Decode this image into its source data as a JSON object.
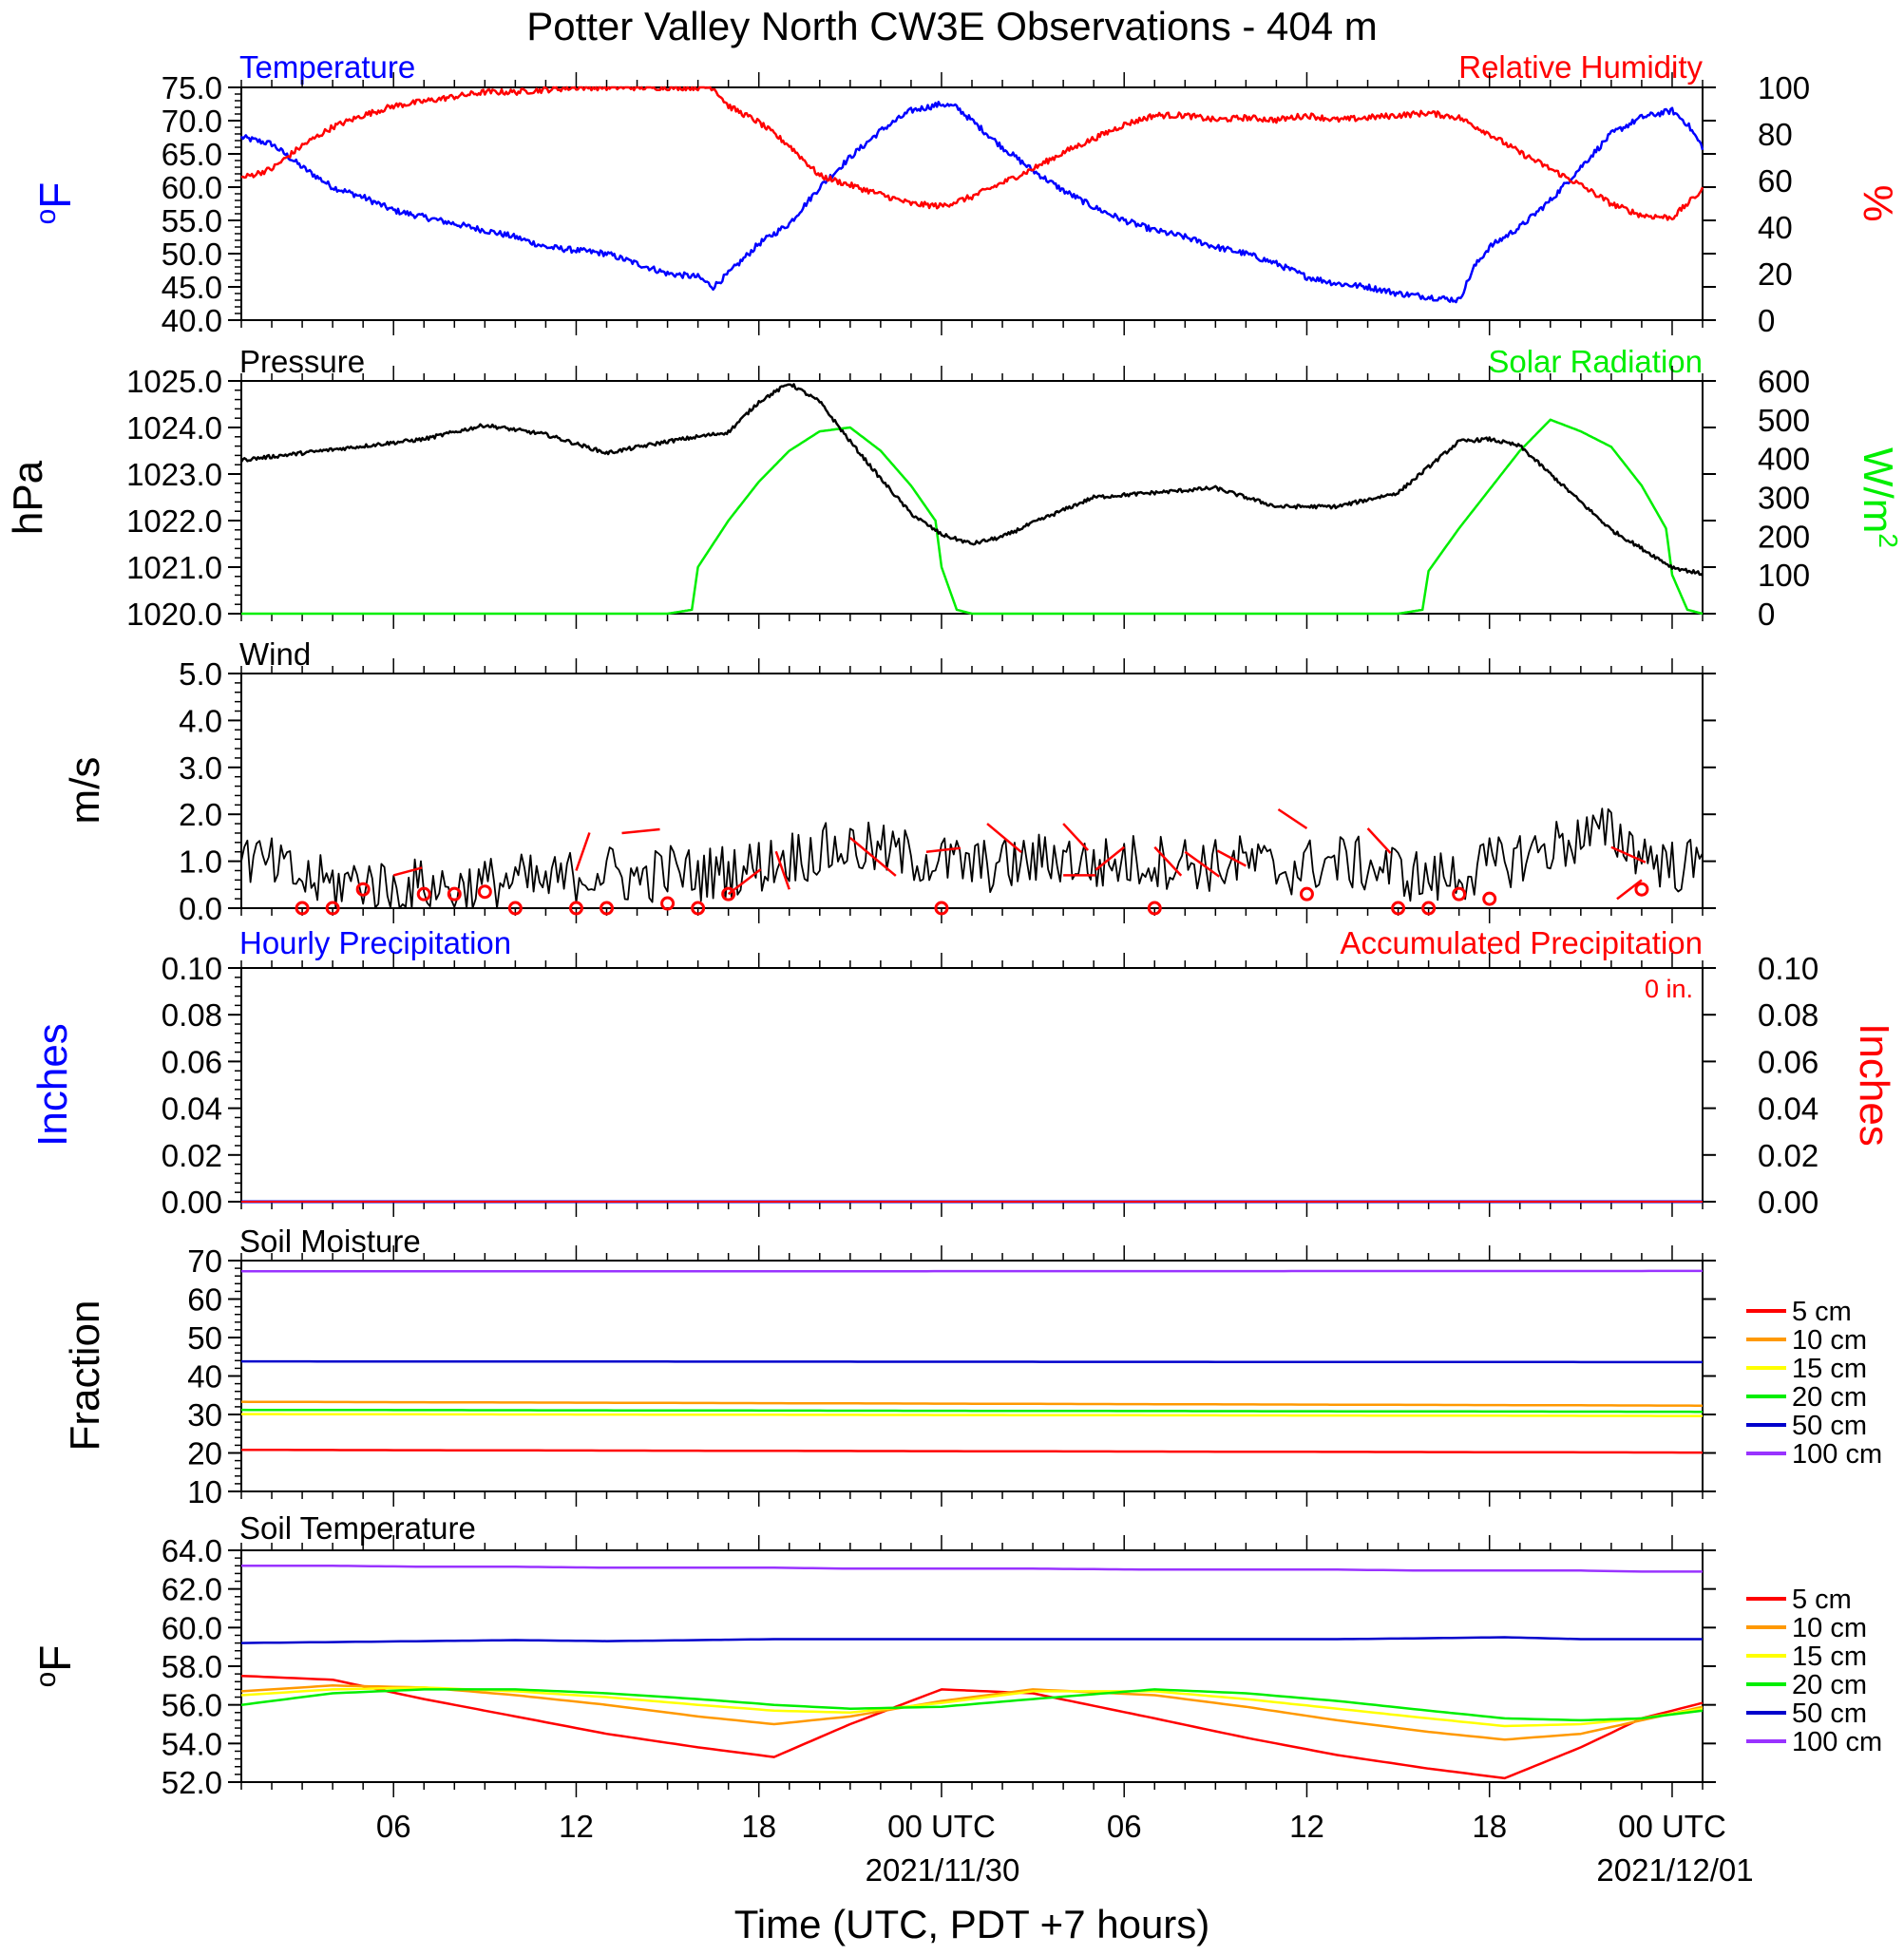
{
  "title": "Potter Valley North CW3E Observations - 404 m",
  "x_axis": {
    "label": "Time (UTC, PDT +7 hours)",
    "tick_labels": [
      "06",
      "12",
      "18",
      "00 UTC",
      "06",
      "12",
      "18",
      "00 UTC"
    ],
    "date_labels": [
      "2021/11/30",
      "2021/12/01"
    ]
  },
  "colors": {
    "blue": "#0000ff",
    "red": "#ff0000",
    "green": "#00ee00",
    "black": "#000000",
    "orange": "#ff9900",
    "yellow": "#ffff00",
    "navy": "#0000cc",
    "purple": "#9933ff"
  },
  "panels": {
    "temp_rh": {
      "left_title": "Temperature",
      "right_title": "Relative Humidity",
      "left_unit": "oF",
      "right_unit": "%",
      "left_ticks": [
        "75.0",
        "70.0",
        "65.0",
        "60.0",
        "55.0",
        "50.0",
        "45.0",
        "40.0"
      ],
      "right_ticks": [
        "100",
        "80",
        "60",
        "40",
        "20",
        "0"
      ]
    },
    "pressure_solar": {
      "left_title": "Pressure",
      "right_title": "Solar Radiation",
      "left_unit": "hPa",
      "right_unit": "W/m2",
      "left_ticks": [
        "1025.0",
        "1024.0",
        "1023.0",
        "1022.0",
        "1021.0",
        "1020.0"
      ],
      "right_ticks": [
        "600",
        "500",
        "400",
        "300",
        "200",
        "100",
        "0"
      ]
    },
    "wind": {
      "left_title": "Wind",
      "left_unit": "m/s",
      "left_ticks": [
        "5.0",
        "4.0",
        "3.0",
        "2.0",
        "1.0",
        "0.0"
      ]
    },
    "precip": {
      "left_title": "Hourly Precipitation",
      "right_title": "Accumulated Precipitation",
      "accum_value": "0 in.",
      "left_unit": "Inches",
      "right_unit": "Inches",
      "left_ticks": [
        "0.10",
        "0.08",
        "0.06",
        "0.04",
        "0.02",
        "0.00"
      ],
      "right_ticks": [
        "0.10",
        "0.08",
        "0.06",
        "0.04",
        "0.02",
        "0.00"
      ]
    },
    "soil_moisture": {
      "left_title": "Soil Moisture",
      "left_unit": "Fraction",
      "left_ticks": [
        "70",
        "60",
        "50",
        "40",
        "30",
        "20",
        "10"
      ],
      "legend": [
        "5 cm",
        "10 cm",
        "15 cm",
        "20 cm",
        "50 cm",
        "100 cm"
      ]
    },
    "soil_temp": {
      "left_title": "Soil Temperature",
      "left_unit": "oF",
      "left_ticks": [
        "64.0",
        "62.0",
        "60.0",
        "58.0",
        "56.0",
        "54.0",
        "52.0"
      ],
      "legend": [
        "5 cm",
        "10 cm",
        "15 cm",
        "20 cm",
        "50 cm",
        "100 cm"
      ]
    }
  },
  "chart_data": [
    {
      "type": "line",
      "title": "Temperature",
      "ylabel": "oF",
      "ylim": [
        40,
        75
      ],
      "x_hours_since_start": [
        0,
        1,
        2,
        3,
        4,
        5,
        6,
        7,
        8,
        9,
        10,
        11,
        12,
        13,
        14,
        15,
        15.5,
        16,
        17,
        18,
        19,
        20,
        21,
        22,
        23,
        23.5,
        24,
        25,
        26,
        27,
        28,
        29,
        30,
        31,
        32,
        33,
        34,
        35,
        36,
        37,
        38,
        39,
        40,
        40.5,
        41,
        42,
        43,
        44,
        45,
        46,
        47,
        47.5,
        48
      ],
      "series": [
        {
          "name": "Temperature",
          "values": [
            67.5,
            66.5,
            63,
            60,
            58.5,
            56.5,
            55.5,
            54.5,
            53.5,
            52.5,
            51,
            50.5,
            50,
            48.5,
            47,
            46.5,
            45,
            47,
            51.5,
            54.5,
            60,
            64.5,
            68.5,
            71.5,
            72.5,
            72,
            70,
            66,
            62.5,
            59.5,
            57,
            55,
            53.5,
            52.5,
            51,
            50,
            48.5,
            46.5,
            45.5,
            45,
            44,
            43.5,
            43,
            48,
            51,
            54,
            58,
            63,
            68,
            70.5,
            71.5,
            69.5,
            66
          ]
        }
      ]
    },
    {
      "type": "line",
      "title": "Relative Humidity",
      "ylabel": "%",
      "ylim": [
        0,
        100
      ],
      "x_hours_since_start": [
        0,
        1,
        2,
        3,
        4,
        5,
        6,
        7,
        8,
        9,
        10,
        11,
        12,
        13,
        14,
        15,
        15.5,
        16,
        17,
        18,
        19,
        20,
        21,
        22,
        23,
        24,
        25,
        26,
        27,
        28,
        29,
        30,
        31,
        32,
        33,
        34,
        35,
        36,
        37,
        38,
        39,
        40,
        41,
        42,
        43,
        44,
        45,
        46,
        47,
        48
      ],
      "series": [
        {
          "name": "Relative Humidity",
          "values": [
            61,
            65,
            75,
            83,
            88,
            92,
            94,
            96,
            98,
            98,
            99,
            100,
            100,
            100,
            100,
            100,
            100,
            92,
            85,
            75,
            62,
            58,
            54,
            50,
            49,
            53,
            59,
            65,
            72,
            78,
            84,
            88,
            88,
            86,
            87,
            86,
            88,
            86,
            87,
            88,
            89,
            87,
            80,
            72,
            65,
            58,
            50,
            45,
            44,
            56
          ]
        }
      ]
    },
    {
      "type": "line",
      "title": "Pressure",
      "ylabel": "hPa",
      "ylim": [
        1020,
        1025
      ],
      "x_hours_since_start": [
        0,
        2,
        4,
        6,
        8,
        10,
        12,
        14,
        16,
        17,
        18,
        19,
        20,
        21,
        22,
        23,
        24,
        25,
        26,
        28,
        30,
        32,
        34,
        36,
        38,
        40,
        41,
        42,
        43,
        44,
        45,
        46,
        47,
        48
      ],
      "series": [
        {
          "name": "Pressure",
          "values": [
            1023.3,
            1023.45,
            1023.6,
            1023.75,
            1024.05,
            1023.85,
            1023.45,
            1023.7,
            1023.9,
            1024.55,
            1024.95,
            1024.55,
            1023.7,
            1022.9,
            1022.15,
            1021.7,
            1021.5,
            1021.65,
            1021.95,
            1022.5,
            1022.6,
            1022.7,
            1022.3,
            1022.3,
            1022.6,
            1023.7,
            1023.75,
            1023.6,
            1023.0,
            1022.4,
            1021.8,
            1021.4,
            1021.0,
            1020.85
          ]
        }
      ]
    },
    {
      "type": "line",
      "title": "Solar Radiation",
      "ylabel": "W/m2",
      "ylim": [
        0,
        600
      ],
      "x_hours_since_start": [
        0,
        14,
        14.8,
        15,
        16,
        17,
        18,
        19,
        20,
        21,
        22,
        22.8,
        23,
        23.5,
        24,
        38,
        38.8,
        39,
        40,
        41,
        42,
        43,
        44,
        45,
        46,
        46.8,
        47,
        47.5,
        48
      ],
      "series": [
        {
          "name": "Solar Radiation",
          "values": [
            0,
            0,
            10,
            120,
            240,
            340,
            420,
            470,
            480,
            420,
            330,
            240,
            120,
            10,
            0,
            0,
            10,
            110,
            220,
            320,
            420,
            500,
            470,
            430,
            330,
            220,
            100,
            10,
            0
          ]
        }
      ]
    },
    {
      "type": "line",
      "title": "Wind",
      "ylabel": "m/s",
      "ylim": [
        0,
        5
      ],
      "x_hours_since_start": [
        0,
        1,
        2,
        3,
        4,
        5,
        6,
        7,
        8,
        9,
        10,
        11,
        12,
        13,
        14,
        15,
        16,
        17,
        18,
        19,
        20,
        21,
        22,
        23,
        24,
        25,
        26,
        27,
        28,
        29,
        30,
        31,
        32,
        33,
        34,
        35,
        36,
        37,
        38,
        39,
        40,
        41,
        42,
        43,
        44,
        45,
        46,
        47,
        48
      ],
      "series": [
        {
          "name": "Wind speed",
          "values": [
            1.1,
            0.9,
            0.6,
            0.5,
            0.6,
            0.4,
            0.5,
            0.4,
            0.5,
            0.6,
            0.5,
            0.7,
            0.8,
            0.6,
            0.8,
            0.7,
            0.8,
            0.9,
            1.1,
            1.2,
            1.3,
            1.2,
            1.1,
            1.0,
            0.9,
            0.9,
            1.0,
            1.1,
            0.9,
            1.0,
            1.0,
            1.0,
            0.9,
            1.0,
            0.8,
            0.9,
            1.0,
            0.9,
            0.8,
            0.6,
            0.7,
            0.9,
            1.1,
            1.3,
            1.5,
            1.6,
            1.2,
            0.9,
            0.9
          ]
        }
      ],
      "observations_marked_calm_or_barb": [
        0.0,
        0.0,
        0.4,
        0.3,
        0.3,
        0.35,
        0.0,
        0.0,
        0.0,
        0.1,
        0.0,
        0.3,
        0.0,
        0.0,
        0.3,
        0.0,
        0.0,
        0.3,
        0.2,
        0.4
      ]
    },
    {
      "type": "line",
      "title": "Hourly Precipitation",
      "ylabel": "Inches",
      "ylim": [
        0,
        0.1
      ],
      "series": [
        {
          "name": "Hourly Precipitation",
          "values": [
            0,
            0
          ]
        },
        {
          "name": "Accumulated Precipitation",
          "values": [
            0,
            0
          ]
        }
      ]
    },
    {
      "type": "line",
      "title": "Soil Moisture",
      "ylabel": "Fraction",
      "ylim": [
        10,
        70
      ],
      "x_hours_since_start": [
        0,
        48
      ],
      "series": [
        {
          "name": "5 cm",
          "values": [
            20.8,
            20.1
          ]
        },
        {
          "name": "10 cm",
          "values": [
            33.3,
            32.3
          ]
        },
        {
          "name": "15 cm",
          "values": [
            30.1,
            29.6
          ]
        },
        {
          "name": "20 cm",
          "values": [
            31.2,
            30.7
          ]
        },
        {
          "name": "50 cm",
          "values": [
            43.8,
            43.6
          ]
        },
        {
          "name": "100 cm",
          "values": [
            67.2,
            67.3
          ]
        }
      ]
    },
    {
      "type": "line",
      "title": "Soil Temperature",
      "ylabel": "oF",
      "ylim": [
        52,
        64
      ],
      "x_hours_since_start": [
        0,
        3,
        6,
        9,
        12,
        15,
        17.5,
        20,
        23,
        26,
        30,
        33,
        36,
        39,
        41.5,
        44,
        46,
        48
      ],
      "series": [
        {
          "name": "5 cm",
          "values": [
            57.5,
            57.3,
            56.3,
            55.4,
            54.5,
            53.8,
            53.3,
            55.0,
            56.8,
            56.6,
            55.3,
            54.3,
            53.4,
            52.7,
            52.2,
            53.8,
            55.3,
            56.1
          ]
        },
        {
          "name": "10 cm",
          "values": [
            56.7,
            57.0,
            56.9,
            56.5,
            56.0,
            55.4,
            55.0,
            55.4,
            56.2,
            56.8,
            56.5,
            55.9,
            55.2,
            54.6,
            54.2,
            54.5,
            55.2,
            55.9
          ]
        },
        {
          "name": "15 cm",
          "values": [
            56.5,
            56.8,
            56.9,
            56.7,
            56.4,
            56.0,
            55.7,
            55.6,
            56.1,
            56.7,
            56.7,
            56.3,
            55.8,
            55.3,
            54.9,
            55.0,
            55.3,
            55.8
          ]
        },
        {
          "name": "20 cm",
          "values": [
            56.0,
            56.6,
            56.8,
            56.8,
            56.6,
            56.3,
            56.0,
            55.8,
            55.9,
            56.3,
            56.8,
            56.6,
            56.2,
            55.7,
            55.3,
            55.2,
            55.3,
            55.7
          ]
        },
        {
          "name": "50 cm",
          "values": [
            59.2,
            59.25,
            59.3,
            59.35,
            59.3,
            59.35,
            59.4,
            59.4,
            59.4,
            59.4,
            59.4,
            59.4,
            59.4,
            59.45,
            59.5,
            59.4,
            59.4,
            59.4
          ]
        },
        {
          "name": "100 cm",
          "values": [
            63.2,
            63.2,
            63.15,
            63.15,
            63.1,
            63.1,
            63.1,
            63.05,
            63.05,
            63.05,
            63.0,
            63.0,
            63.0,
            62.95,
            62.95,
            62.95,
            62.9,
            62.9
          ]
        }
      ]
    }
  ]
}
